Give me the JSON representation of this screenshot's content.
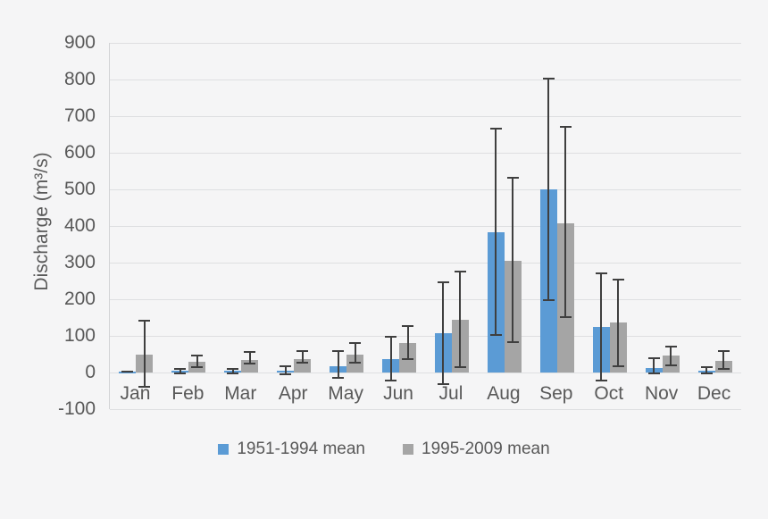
{
  "chart_data": {
    "type": "bar",
    "title": "",
    "xlabel": "",
    "ylabel": "Discharge (m³/s)",
    "categories": [
      "Jan",
      "Feb",
      "Mar",
      "Apr",
      "May",
      "Jun",
      "Jul",
      "Aug",
      "Sep",
      "Oct",
      "Nov",
      "Dec"
    ],
    "y_ticks": [
      900,
      800,
      700,
      600,
      500,
      400,
      300,
      200,
      100,
      0,
      -100
    ],
    "ylim": [
      -100,
      900
    ],
    "grid": true,
    "legend_position": "bottom",
    "error_bars": true,
    "series": [
      {
        "name": "1951-1994 mean",
        "color": "#5b9bd5",
        "values": [
          2,
          5,
          4,
          6,
          17,
          37,
          108,
          383,
          500,
          125,
          13,
          4
        ],
        "error_low": [
          -1,
          -5,
          -4,
          -8,
          -16,
          -24,
          -33,
          100,
          195,
          -25,
          -6,
          -6
        ],
        "error_high": [
          5,
          12,
          11,
          19,
          60,
          100,
          250,
          668,
          805,
          272,
          42,
          16
        ]
      },
      {
        "name": "1995-2009 mean",
        "color": "#a5a5a5",
        "values": [
          48,
          29,
          34,
          37,
          50,
          80,
          143,
          305,
          408,
          137,
          46,
          31
        ],
        "error_low": [
          -41,
          11,
          22,
          24,
          25,
          35,
          12,
          80,
          148,
          15,
          17,
          7
        ],
        "error_high": [
          145,
          49,
          58,
          62,
          82,
          130,
          278,
          535,
          672,
          257,
          73,
          61
        ]
      }
    ],
    "colors": {
      "background": "#f5f5f6",
      "gridline": "#dedfe1",
      "axis_line": "#d2d3d5",
      "error_bar": "#3f3f3f",
      "text": "#595959"
    }
  }
}
